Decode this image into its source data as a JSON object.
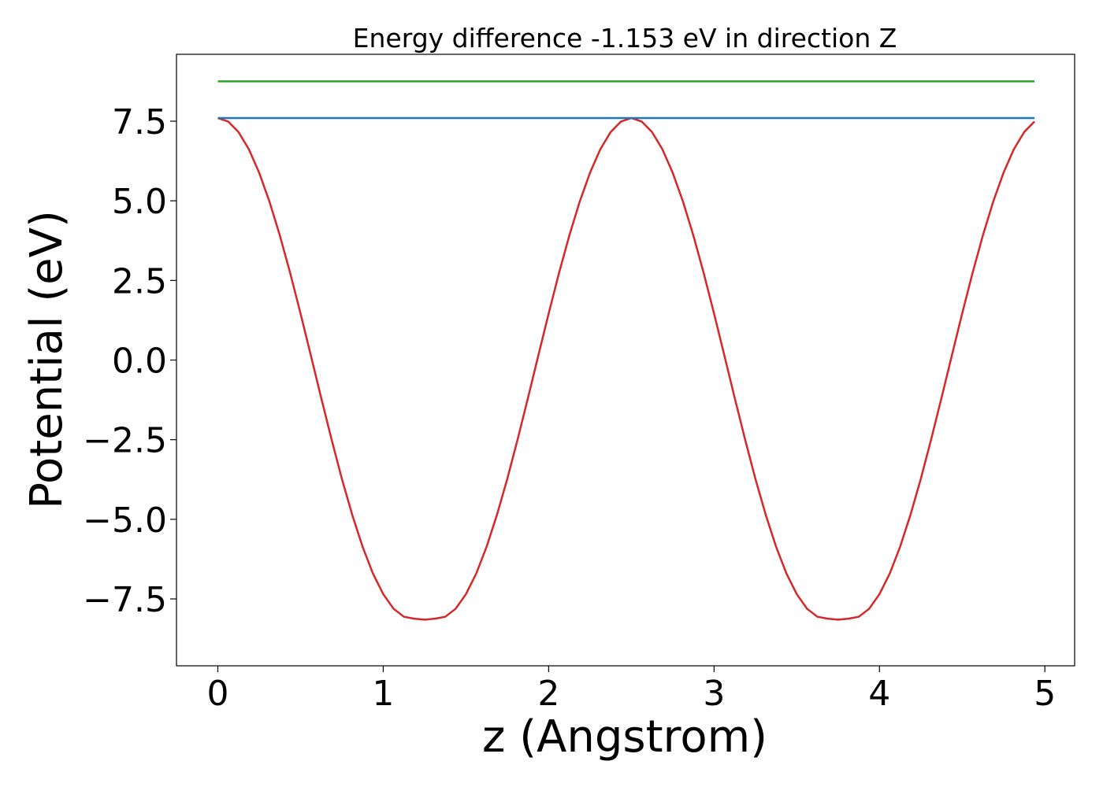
{
  "chart_data": {
    "type": "line",
    "title": "Energy difference -1.153 eV in direction Z",
    "xlabel": "z (Angstrom)",
    "ylabel": "Potential (eV)",
    "xlim": [
      -0.25,
      5.18
    ],
    "ylim": [
      -9.6,
      9.6
    ],
    "xticks": [
      0,
      1,
      2,
      3,
      4,
      5
    ],
    "xtick_labels": [
      "0",
      "1",
      "2",
      "3",
      "4",
      "5"
    ],
    "yticks": [
      -7.5,
      -5.0,
      -2.5,
      0.0,
      2.5,
      5.0,
      7.5
    ],
    "ytick_labels": [
      "−7.5",
      "−5.0",
      "−2.5",
      "0.0",
      "2.5",
      "5.0",
      "7.5"
    ],
    "grid": false,
    "series": [
      {
        "color": "#d62728",
        "style": "line",
        "x": [
          0,
          0.0625,
          0.125,
          0.1875,
          0.25,
          0.3125,
          0.375,
          0.4375,
          0.5,
          0.5625,
          0.625,
          0.6875,
          0.75,
          0.8125,
          0.875,
          0.9375,
          1.0,
          1.0625,
          1.125,
          1.1875,
          1.25,
          1.3125,
          1.375,
          1.4375,
          1.5,
          1.5625,
          1.625,
          1.6875,
          1.75,
          1.8125,
          1.875,
          1.9375,
          2.0,
          2.0625,
          2.125,
          2.1875,
          2.25,
          2.3125,
          2.375,
          2.4375,
          2.5,
          2.5625,
          2.625,
          2.6875,
          2.75,
          2.8125,
          2.875,
          2.9375,
          3.0,
          3.0625,
          3.125,
          3.1875,
          3.25,
          3.3125,
          3.375,
          3.4375,
          3.5,
          3.5625,
          3.625,
          3.6875,
          3.75,
          3.8125,
          3.875,
          3.9375,
          4.0,
          4.0625,
          4.125,
          4.1875,
          4.25,
          4.3125,
          4.375,
          4.4375,
          4.5,
          4.5625,
          4.625,
          4.6875,
          4.75,
          4.8125,
          4.875,
          4.9375
        ],
        "y": [
          7.6,
          7.49,
          7.16,
          6.62,
          5.88,
          4.97,
          3.91,
          2.73,
          1.46,
          0.14,
          -1.19,
          -2.49,
          -3.73,
          -4.86,
          -5.86,
          -6.7,
          -7.35,
          -7.81,
          -8.06,
          -8.12,
          -8.15,
          -8.12,
          -8.06,
          -7.81,
          -7.35,
          -6.7,
          -5.86,
          -4.86,
          -3.73,
          -2.49,
          -1.19,
          0.14,
          1.46,
          2.73,
          3.91,
          4.97,
          5.88,
          6.62,
          7.16,
          7.49,
          7.6,
          7.49,
          7.16,
          6.62,
          5.88,
          4.97,
          3.91,
          2.73,
          1.46,
          0.14,
          -1.19,
          -2.49,
          -3.73,
          -4.86,
          -5.86,
          -6.7,
          -7.35,
          -7.81,
          -8.06,
          -8.12,
          -8.15,
          -8.12,
          -8.06,
          -7.81,
          -7.35,
          -6.7,
          -5.86,
          -4.86,
          -3.73,
          -2.49,
          -1.19,
          0.14,
          1.46,
          2.73,
          3.91,
          4.97,
          5.88,
          6.62,
          7.16,
          7.49
        ]
      },
      {
        "color": "#1f77b4",
        "style": "line",
        "x": [
          0,
          4.9375
        ],
        "y": [
          7.6,
          7.6
        ]
      },
      {
        "color": "#2ca02c",
        "style": "line",
        "x": [
          0,
          4.9375
        ],
        "y": [
          8.75,
          8.75
        ]
      }
    ]
  }
}
